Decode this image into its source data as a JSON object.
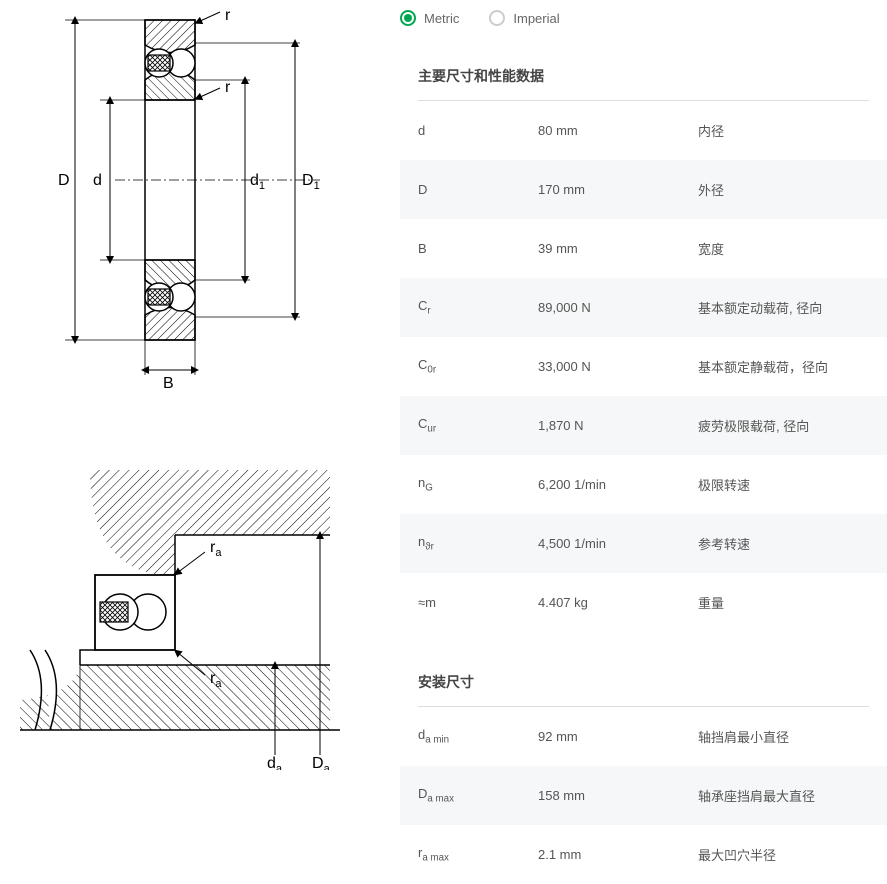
{
  "units": {
    "metric_label": "Metric",
    "imperial_label": "Imperial",
    "selected": "metric"
  },
  "sections": {
    "main": "主要尺寸和性能数据",
    "mounting": "安装尺寸"
  },
  "specs_main": [
    {
      "sym": "d",
      "sub": "",
      "val": "80 mm",
      "desc": "内径"
    },
    {
      "sym": "D",
      "sub": "",
      "val": "170 mm",
      "desc": "外径"
    },
    {
      "sym": "B",
      "sub": "",
      "val": "39 mm",
      "desc": "宽度"
    },
    {
      "sym": "C",
      "sub": "r",
      "val": "89,000 N",
      "desc": "基本额定动载荷, 径向"
    },
    {
      "sym": "C",
      "sub": "0r",
      "val": "33,000 N",
      "desc": "基本额定静载荷，径向"
    },
    {
      "sym": "C",
      "sub": "ur",
      "val": "1,870 N",
      "desc": "疲劳极限载荷, 径向"
    },
    {
      "sym": "n",
      "sub": "G",
      "val": "6,200 1/min",
      "desc": "极限转速"
    },
    {
      "sym": "n",
      "sub": "ϑr",
      "val": "4,500 1/min",
      "desc": "参考转速"
    },
    {
      "sym": "≈m",
      "sub": "",
      "val": "4.407 kg",
      "desc": "重量"
    }
  ],
  "specs_mounting": [
    {
      "sym": "d",
      "sub": "a min",
      "val": "92 mm",
      "desc": "轴挡肩最小直径"
    },
    {
      "sym": "D",
      "sub": "a max",
      "val": "158 mm",
      "desc": "轴承座挡肩最大直径"
    },
    {
      "sym": "r",
      "sub": "a max",
      "val": "2.1 mm",
      "desc": "最大凹穴半径"
    }
  ],
  "diagram_labels": {
    "r1": "r",
    "r2": "r",
    "D": "D",
    "d": "d",
    "d1": "d",
    "d1_sub": "1",
    "D1": "D",
    "D1_sub": "1",
    "B": "B",
    "ra1": "r",
    "ra1_sub": "a",
    "ra2": "r",
    "ra2_sub": "a",
    "da": "d",
    "da_sub": "a",
    "Da": "D",
    "Da_sub": "a"
  },
  "colors": {
    "accent": "#00a651",
    "stroke": "#000000",
    "row_alt": "#f6f7f8",
    "text": "#555555"
  }
}
